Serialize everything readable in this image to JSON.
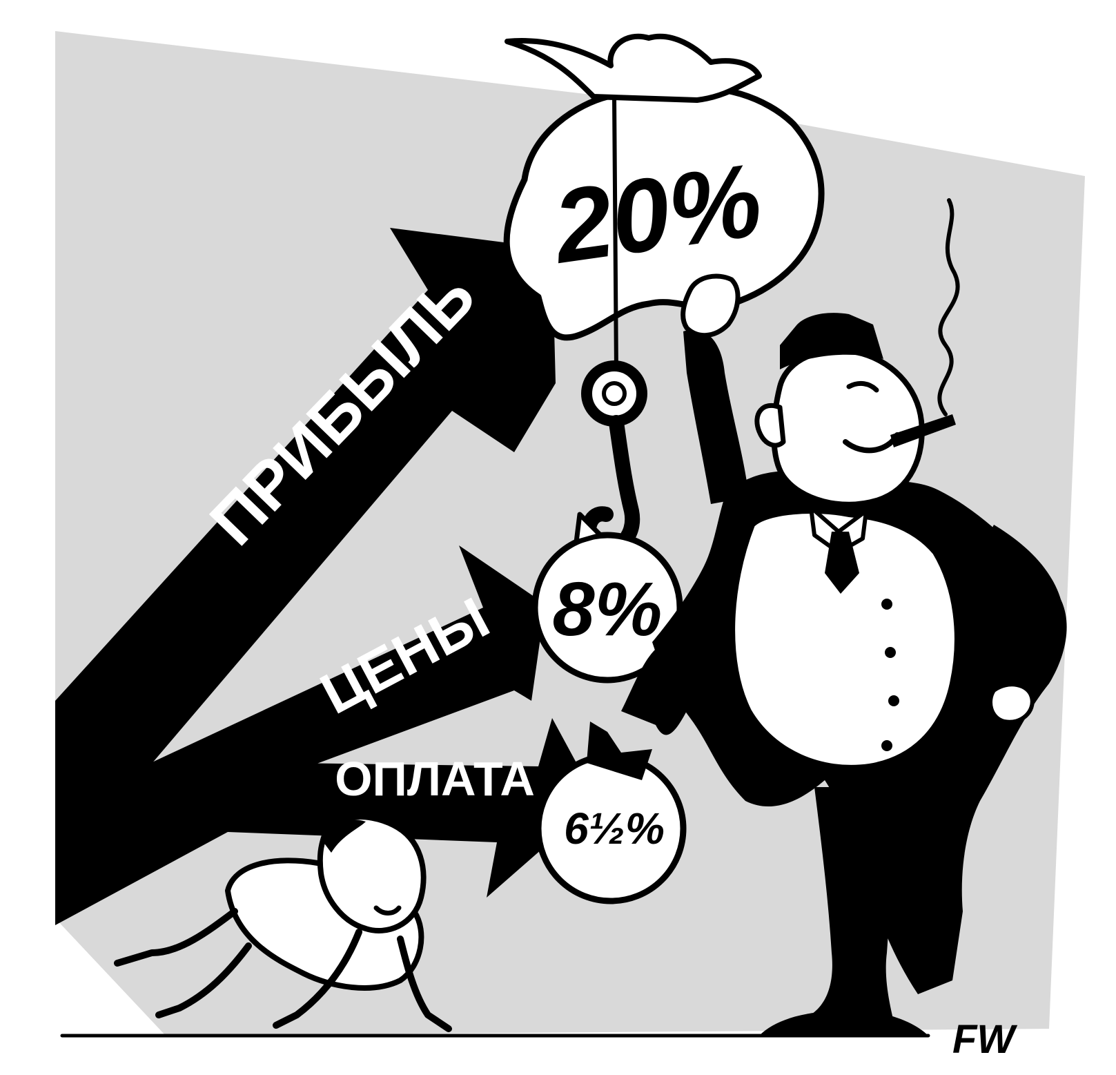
{
  "arrows": {
    "profit": "ПРИБЫЛЬ",
    "prices": "ЦЕНЫ",
    "pay": "ОПЛАТА"
  },
  "weights": {
    "bag": "20%",
    "middle": "8%",
    "bottom": "6½%"
  },
  "signature": "FW",
  "colors": {
    "background_panel": "#d9d9d9",
    "ink": "#000000",
    "paper": "#ffffff"
  }
}
